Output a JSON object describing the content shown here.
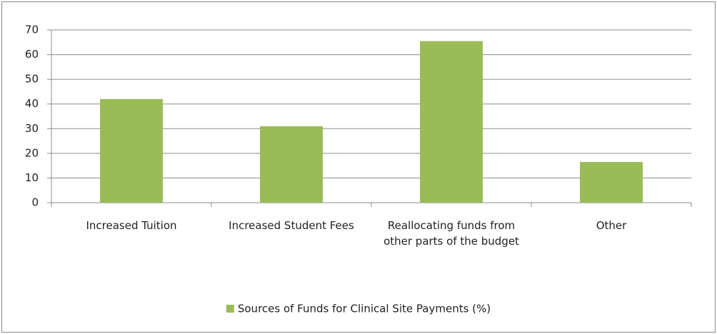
{
  "chart_data": {
    "type": "bar",
    "categories": [
      "Increased Tuition",
      "Increased Student Fees",
      "Reallocating funds from other parts of the budget",
      "Other"
    ],
    "series": [
      {
        "name": "Sources of Funds for Clinical Site Payments (%)",
        "color": "#9bbb59",
        "values": [
          42,
          31,
          65.5,
          16.5
        ]
      }
    ],
    "ylim": [
      0,
      70
    ],
    "yticks": [
      0,
      10,
      20,
      30,
      40,
      50,
      60,
      70
    ],
    "grid": true,
    "legend": "bottom"
  }
}
